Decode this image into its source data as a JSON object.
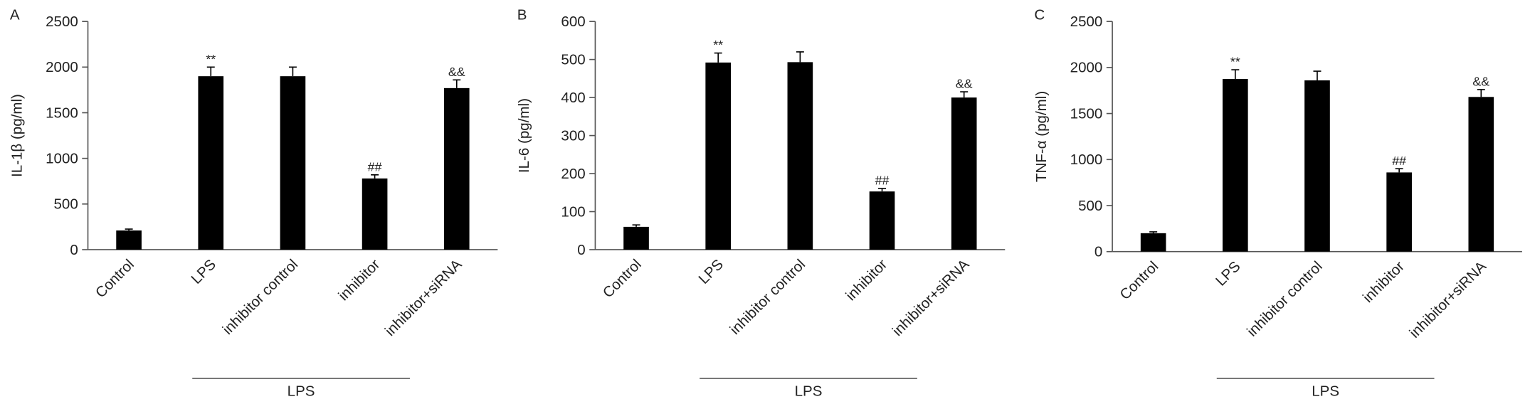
{
  "chart_data": [
    {
      "type": "bar",
      "panel_label": "A",
      "ylabel": "IL-1β (pg/ml)",
      "categories": [
        "Control",
        "LPS",
        "inhibitor control",
        "inhibitor",
        "inhibitor+siRNA"
      ],
      "values": [
        210,
        1900,
        1900,
        780,
        1770
      ],
      "errors": [
        15,
        100,
        100,
        40,
        90
      ],
      "annotations": [
        null,
        "**",
        null,
        "##",
        "&&"
      ],
      "group_label": "LPS",
      "color": "#000000",
      "ylim": [
        0,
        2500
      ],
      "yticks": [
        0,
        500,
        1000,
        1500,
        2000,
        2500
      ]
    },
    {
      "type": "bar",
      "panel_label": "B",
      "ylabel": "IL-6 (pg/ml)",
      "categories": [
        "Control",
        "LPS",
        "inhibitor control",
        "inhibitor",
        "inhibitor+siRNA"
      ],
      "values": [
        60,
        492,
        493,
        153,
        400
      ],
      "errors": [
        5,
        25,
        27,
        8,
        15
      ],
      "annotations": [
        null,
        "**",
        null,
        "##",
        "&&"
      ],
      "group_label": "LPS",
      "color": "#000000",
      "ylim": [
        0,
        600
      ],
      "yticks": [
        0,
        100,
        200,
        300,
        400,
        500,
        600
      ]
    },
    {
      "type": "bar",
      "panel_label": "C",
      "ylabel": "TNF-α (pg/ml)",
      "categories": [
        "Control",
        "LPS",
        "inhibitor control",
        "inhibitor",
        "inhibitor+siRNA"
      ],
      "values": [
        200,
        1875,
        1860,
        860,
        1680
      ],
      "errors": [
        15,
        100,
        100,
        40,
        80
      ],
      "annotations": [
        null,
        "**",
        null,
        "##",
        "&&"
      ],
      "group_label": "LPS",
      "color": "#000000",
      "ylim": [
        0,
        2500
      ],
      "yticks": [
        0,
        500,
        1000,
        1500,
        2000,
        2500
      ]
    }
  ]
}
